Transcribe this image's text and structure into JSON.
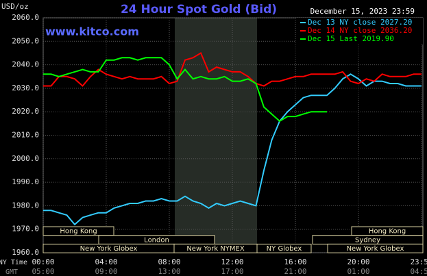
{
  "chart_data": {
    "type": "line",
    "title": "24 Hour Spot Gold (Bid)",
    "subtitle": "December 15, 2023 23:59",
    "watermark": "www.kitco.com",
    "y_label": "USD/oz",
    "x_label": "NY Time",
    "x2_label": "GMT",
    "x": [
      0,
      0.5,
      1,
      1.5,
      2,
      2.5,
      3,
      3.5,
      4,
      4.5,
      5,
      5.5,
      6,
      6.5,
      7,
      7.5,
      8,
      8.5,
      9,
      9.5,
      10,
      10.5,
      11,
      11.5,
      12,
      12.5,
      13,
      13.5,
      14,
      14.5,
      15,
      15.5,
      16,
      16.5,
      17,
      17.5,
      18,
      18.5,
      19,
      19.5,
      20,
      20.5,
      21,
      21.5,
      22,
      22.5,
      23,
      23.5,
      24
    ],
    "series": [
      {
        "name": "Dec 13 NY close 2027.20",
        "color": "#33ccff",
        "values": [
          1978,
          1978,
          1977,
          1976,
          1972,
          1975,
          1976,
          1977,
          1977,
          1979,
          1980,
          1981,
          1981,
          1982,
          1982,
          1983,
          1982,
          1982,
          1984,
          1982,
          1981,
          1979,
          1981,
          1980,
          1981,
          1982,
          1981,
          1980,
          1995,
          2008,
          2016,
          2020,
          2023,
          2026,
          2027,
          2027,
          2027,
          2030,
          2034,
          2036,
          2034,
          2031,
          2033,
          2033,
          2032,
          2032,
          2031,
          2031,
          2031
        ]
      },
      {
        "name": "Dec 14 NY close 2036.20",
        "color": "#ff0000",
        "values": [
          2031,
          2031,
          2035,
          2035,
          2034,
          2031,
          2035,
          2038,
          2036,
          2035,
          2034,
          2035,
          2034,
          2034,
          2034,
          2035,
          2032,
          2033,
          2042,
          2043,
          2045,
          2037,
          2039,
          2038,
          2037,
          2037,
          2035,
          2032,
          2031,
          2033,
          2033,
          2034,
          2035,
          2035,
          2036,
          2036,
          2036,
          2036,
          2037,
          2033,
          2032,
          2034,
          2033,
          2036,
          2035,
          2035,
          2035,
          2036,
          2036
        ]
      },
      {
        "name": "Dec 15 Last 2019.90",
        "color": "#00ff00",
        "values": [
          2036,
          2036,
          2035,
          2036,
          2037,
          2038,
          2037,
          2037,
          2042,
          2042,
          2043,
          2043,
          2042,
          2043,
          2043,
          2043,
          2040,
          2034,
          2038,
          2034,
          2035,
          2034,
          2034,
          2035,
          2033,
          2033,
          2034,
          2032,
          2022,
          2019,
          2016,
          2018,
          2018,
          2019,
          2020,
          2020,
          2020,
          null,
          null,
          null,
          null,
          null,
          null,
          null,
          null,
          null,
          null,
          null,
          null
        ]
      }
    ],
    "xlim": [
      0,
      24
    ],
    "xticks": [
      {
        "value": 0,
        "label": "00:00"
      },
      {
        "value": 4,
        "label": "04:00"
      },
      {
        "value": 8,
        "label": "08:00"
      },
      {
        "value": 12,
        "label": "12:00"
      },
      {
        "value": 16,
        "label": "16:00"
      },
      {
        "value": 20,
        "label": "20:00"
      },
      {
        "value": 24,
        "label": "23:59"
      }
    ],
    "x2ticks": [
      "05:00",
      "09:00",
      "13:00",
      "17:00",
      "21:00",
      "01:00",
      "04:59"
    ],
    "ylim": [
      1960,
      2060
    ],
    "yticks": [
      {
        "value": 1960,
        "label": "1960.0"
      },
      {
        "value": 1970,
        "label": "1970.0"
      },
      {
        "value": 1980,
        "label": "1980.0"
      },
      {
        "value": 1990,
        "label": "1990.0"
      },
      {
        "value": 2000,
        "label": "2000.0"
      },
      {
        "value": 2010,
        "label": "2010.0"
      },
      {
        "value": 2020,
        "label": "2020.0"
      },
      {
        "value": 2030,
        "label": "2030.0"
      },
      {
        "value": 2040,
        "label": "2040.0"
      },
      {
        "value": 2050,
        "label": "2050.0"
      },
      {
        "value": 2060,
        "label": "2060.0"
      }
    ],
    "grid": true,
    "sessions": [
      "Hong Kong",
      "London",
      "New York Globex",
      "New York NYMEX",
      "NY Globex",
      "Hong Kong",
      "Sydney",
      "New York Globex"
    ]
  }
}
